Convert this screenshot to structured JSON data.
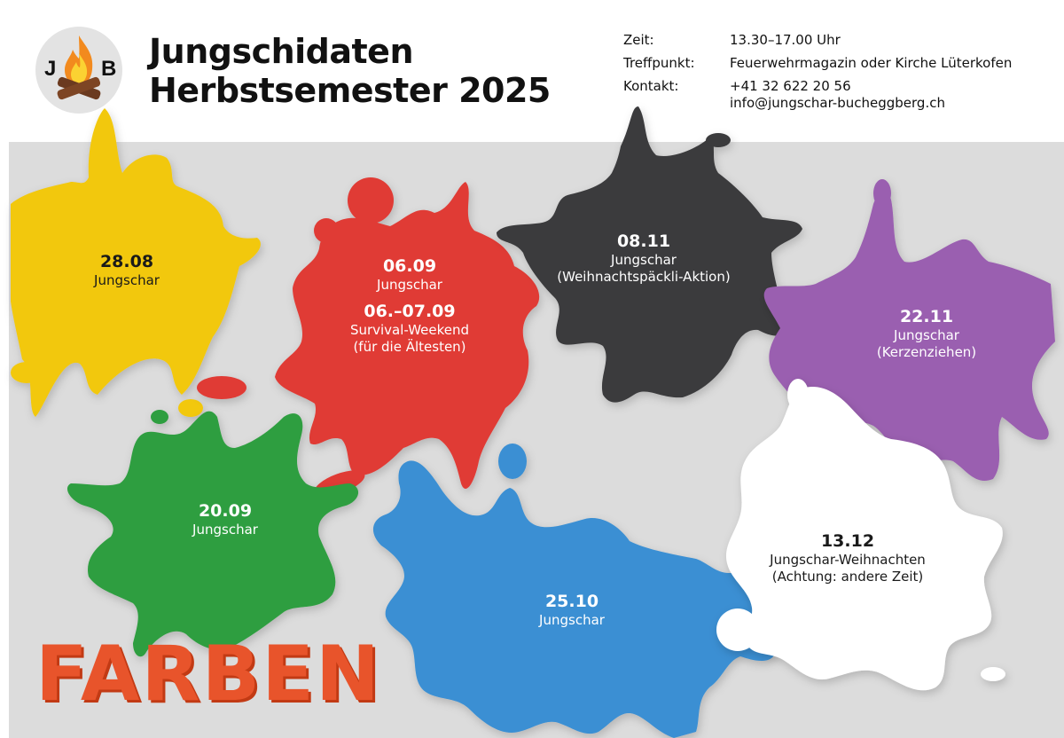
{
  "header": {
    "title_line1": "Jungschidaten",
    "title_line2": "Herbstsemester 2025",
    "logo": {
      "left_letter": "J",
      "right_letter": "B",
      "icon": "campfire-icon"
    },
    "info": {
      "time_label": "Zeit:",
      "time_value": "13.30–17.00 Uhr",
      "meeting_label": "Treffpunkt:",
      "meeting_value": "Feuerwehrmagazin oder Kirche Lüterkofen",
      "contact_label": "Kontakt:",
      "contact_phone": "+41 32 622 20 56",
      "contact_email": "info@jungschar-bucheggberg.ch"
    }
  },
  "events": {
    "yellow": {
      "date": "28.08",
      "text": "Jungschar",
      "color": "#f2c811"
    },
    "red": {
      "date": "06.09",
      "text": "Jungschar",
      "date2": "06.–07.09",
      "text2": "Survival-Weekend",
      "text3": "(für die Ältesten)",
      "color": "#e03b36"
    },
    "black": {
      "date": "08.11",
      "text": "Jungschar",
      "text2": "(Weihnachtspäckli-Aktion)",
      "color": "#3a3a3c"
    },
    "purple": {
      "date": "22.11",
      "text": "Jungschar",
      "text2": "(Kerzenziehen)",
      "color": "#9a5fb0"
    },
    "green": {
      "date": "20.09",
      "text": "Jungschar",
      "color": "#2e9e3f"
    },
    "blue": {
      "date": "25.10",
      "text": "Jungschar",
      "color": "#3a8fd3"
    },
    "white": {
      "date": "13.12",
      "text": "Jungschar-Weihnachten",
      "text2": "(Achtung: andere Zeit)",
      "color": "#ffffff"
    }
  },
  "footer": {
    "theme": "FARBEN",
    "theme_color": "#e8542b"
  }
}
